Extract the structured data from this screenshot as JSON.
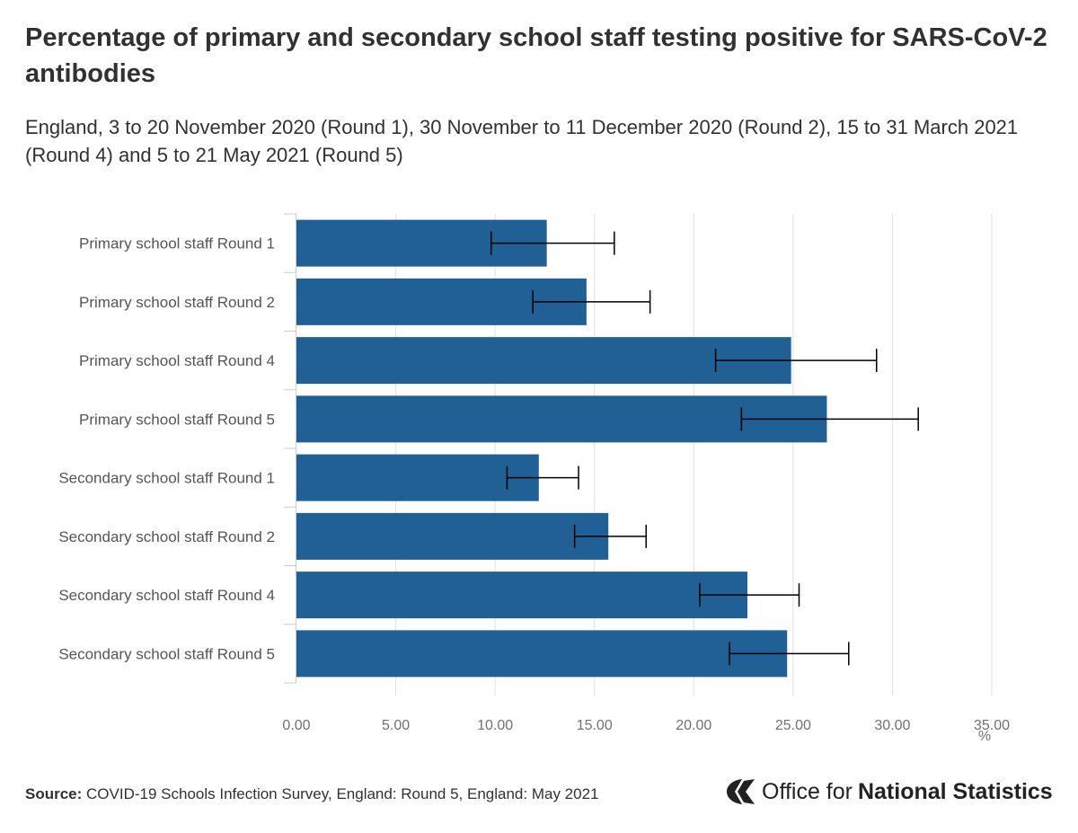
{
  "chart_data": {
    "type": "bar",
    "orientation": "horizontal",
    "title": "Percentage of primary and secondary school staff testing positive for SARS-CoV-2 antibodies",
    "subtitle": "England, 3 to 20 November 2020 (Round 1), 30 November to 11 December 2020 (Round 2), 15 to 31 March 2021 (Round 4) and 5 to 21 May 2021 (Round 5)",
    "categories": [
      "Primary school staff Round 1",
      "Primary school staff Round 2",
      "Primary school staff Round 4",
      "Primary school staff Round 5",
      "Secondary school staff Round 1",
      "Secondary school staff Round 2",
      "Secondary school staff Round 4",
      "Secondary school staff Round 5"
    ],
    "values": [
      12.6,
      14.6,
      24.9,
      26.7,
      12.2,
      15.7,
      22.7,
      24.7
    ],
    "error_low": [
      9.8,
      11.9,
      21.1,
      22.4,
      10.6,
      14.0,
      20.3,
      21.8
    ],
    "error_high": [
      16.0,
      17.8,
      29.2,
      31.3,
      14.2,
      17.6,
      25.3,
      27.8
    ],
    "xlim": [
      0,
      35
    ],
    "xticks": [
      "0.00",
      "5.00",
      "10.00",
      "15.00",
      "20.00",
      "25.00",
      "30.00",
      "35.00"
    ],
    "xtick_values": [
      0,
      5,
      10,
      15,
      20,
      25,
      30,
      35
    ],
    "xlabel": "%",
    "ylabel": "",
    "grid": true,
    "bar_color": "#206095",
    "grid_color": "#e0e0e0",
    "error_bar_color": "#000000"
  },
  "footer": {
    "source_label": "Source:",
    "source_text": "COVID-19 Schools Infection Survey, England: Round 5, England: May 2021"
  },
  "logo": {
    "part1": "Office for",
    "part2": "National Statistics"
  }
}
